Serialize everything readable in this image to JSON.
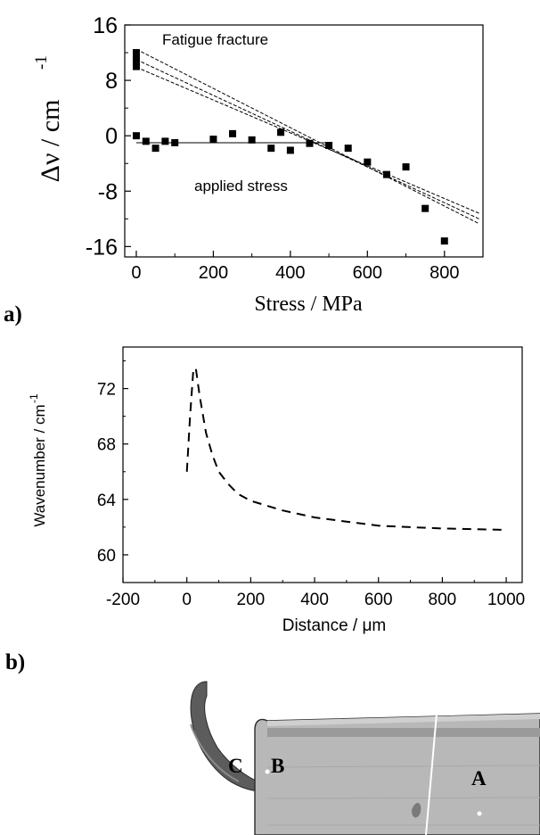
{
  "chart_data": [
    {
      "type": "scatter",
      "panel_label": "a)",
      "xlabel": "Stress  / MPa",
      "ylabel": "Δν / cm",
      "ylabel_sup": "-1",
      "xlim": [
        -30,
        900
      ],
      "ylim": [
        -17.5,
        16
      ],
      "xticks": [
        "0",
        "200",
        "400",
        "600",
        "800"
      ],
      "yticks": [
        "16",
        "8",
        "0",
        "-8",
        "-16"
      ],
      "annotations": [
        "Fatigue fracture",
        "applied stress"
      ],
      "series": [
        {
          "points": [
            {
              "x": 0,
              "y": 0
            },
            {
              "x": 25,
              "y": -0.8
            },
            {
              "x": 50,
              "y": -1.8
            },
            {
              "x": 75,
              "y": -0.8
            },
            {
              "x": 100,
              "y": -1.0
            },
            {
              "x": 200,
              "y": -0.5
            },
            {
              "x": 250,
              "y": 0.3
            },
            {
              "x": 300,
              "y": -0.6
            },
            {
              "x": 350,
              "y": -1.8
            },
            {
              "x": 375,
              "y": 0.5
            },
            {
              "x": 400,
              "y": -2.1
            },
            {
              "x": 450,
              "y": -1.1
            },
            {
              "x": 500,
              "y": -1.4
            },
            {
              "x": 550,
              "y": -1.8
            },
            {
              "x": 600,
              "y": -3.8
            },
            {
              "x": 650,
              "y": -5.6
            },
            {
              "x": 700,
              "y": -4.5
            },
            {
              "x": 750,
              "y": -10.5
            },
            {
              "x": 800,
              "y": -15.2
            },
            {
              "x": 0,
              "y": 10.0
            },
            {
              "x": 0,
              "y": 11.0
            },
            {
              "x": 0,
              "y": 12.0
            }
          ]
        }
      ],
      "fit_lines": [
        {
          "style": "solid",
          "x": [
            0,
            500
          ],
          "y": [
            -1.0,
            -1.0
          ]
        },
        {
          "style": "dashed",
          "x": [
            0,
            890
          ],
          "y": [
            12.5,
            -12.7
          ]
        },
        {
          "style": "dashed",
          "x": [
            0,
            890
          ],
          "y": [
            11.0,
            -12.0
          ]
        },
        {
          "style": "dashed",
          "x": [
            0,
            890
          ],
          "y": [
            9.9,
            -11.2
          ]
        }
      ]
    },
    {
      "type": "line",
      "panel_label": "b)",
      "xlabel": "Distance / μm",
      "ylabel": "Wavenumber / cm",
      "ylabel_sup": "-1",
      "xlim": [
        -200,
        1050
      ],
      "ylim": [
        58,
        75
      ],
      "xticks": [
        "-200",
        "0",
        "200",
        "400",
        "600",
        "800",
        "1000"
      ],
      "yticks": [
        "72",
        "68",
        "64",
        "60"
      ],
      "series": [
        {
          "style": "dashed",
          "x": [
            0,
            10,
            20,
            28,
            40,
            60,
            80,
            100,
            130,
            160,
            200,
            300,
            400,
            500,
            600,
            700,
            800,
            900,
            1000
          ],
          "y": [
            66,
            70,
            73.2,
            73.5,
            71.5,
            68.8,
            67.2,
            66.0,
            65.1,
            64.4,
            63.9,
            63.2,
            62.7,
            62.4,
            62.1,
            62.0,
            61.9,
            61.85,
            61.8
          ]
        }
      ]
    }
  ],
  "photo": {
    "labels": [
      "C",
      "B",
      "A"
    ]
  }
}
